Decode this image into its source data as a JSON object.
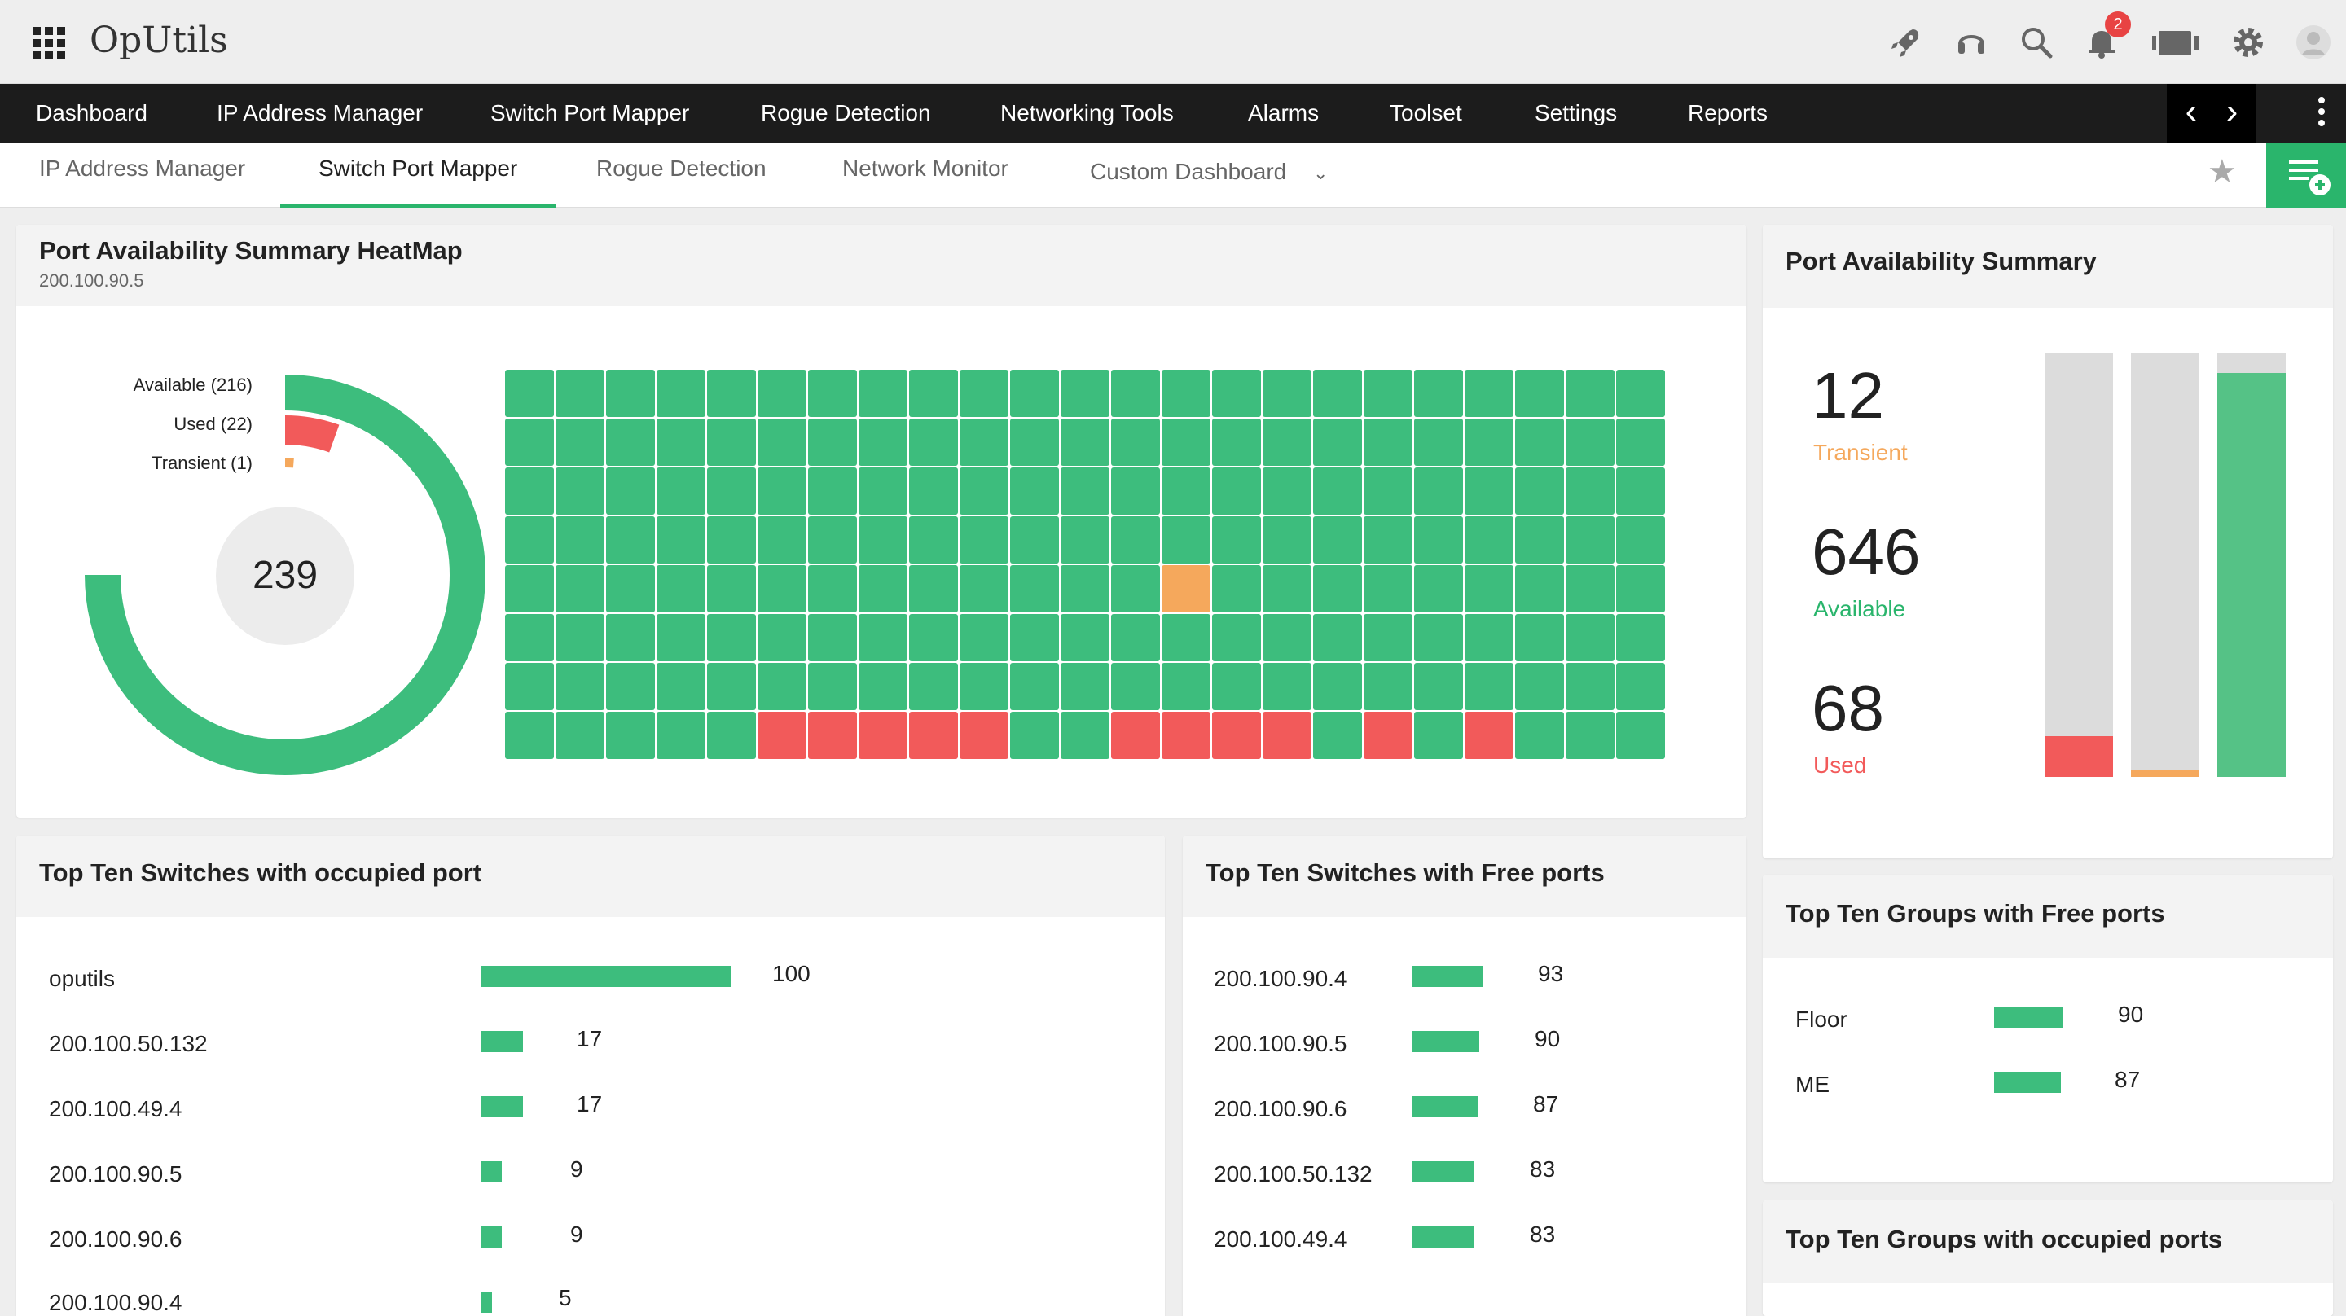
{
  "app": {
    "title": "OpUtils",
    "notification_count": "2"
  },
  "mainnav": {
    "items": [
      "Dashboard",
      "IP Address Manager",
      "Switch Port Mapper",
      "Rogue Detection",
      "Networking Tools",
      "Alarms",
      "Toolset",
      "Settings",
      "Reports"
    ]
  },
  "subnav": {
    "tabs": [
      "IP Address Manager",
      "Switch Port Mapper",
      "Rogue Detection",
      "Network Monitor",
      "Custom Dashboard"
    ],
    "active": "Switch Port Mapper"
  },
  "heatmap_panel": {
    "title": "Port Availability Summary HeatMap",
    "subtitle": "200.100.90.5",
    "donut": {
      "total": "239",
      "legend": [
        "Available (216)",
        "Used (22)",
        "Transient (1)"
      ],
      "available": 216,
      "used": 22,
      "transient": 1
    },
    "grid": {
      "rows": 8,
      "cols": 23,
      "orange_cells": [
        [
          4,
          13
        ]
      ],
      "red_cells": [
        [
          7,
          5
        ],
        [
          7,
          6
        ],
        [
          7,
          7
        ],
        [
          7,
          8
        ],
        [
          7,
          9
        ],
        [
          7,
          12
        ],
        [
          7,
          13
        ],
        [
          7,
          14
        ],
        [
          7,
          15
        ],
        [
          7,
          17
        ],
        [
          7,
          19
        ]
      ]
    }
  },
  "summary_panel": {
    "title": "Port Availability Summary",
    "stats": [
      {
        "value": "12",
        "label": "Transient"
      },
      {
        "value": "646",
        "label": "Available"
      },
      {
        "value": "68",
        "label": "Used"
      }
    ]
  },
  "occupied_panel": {
    "title": "Top Ten Switches with occupied port",
    "rows": [
      {
        "label": "oputils",
        "value": "100"
      },
      {
        "label": "200.100.50.132",
        "value": "17"
      },
      {
        "label": "200.100.49.4",
        "value": "17"
      },
      {
        "label": "200.100.90.5",
        "value": "9"
      },
      {
        "label": "200.100.90.6",
        "value": "9"
      },
      {
        "label": "200.100.90.4",
        "value": "5"
      }
    ]
  },
  "free_panel": {
    "title": "Top Ten Switches with Free ports",
    "rows": [
      {
        "label": "200.100.90.4",
        "value": "93"
      },
      {
        "label": "200.100.90.5",
        "value": "90"
      },
      {
        "label": "200.100.90.6",
        "value": "87"
      },
      {
        "label": "200.100.50.132",
        "value": "83"
      },
      {
        "label": "200.100.49.4",
        "value": "83"
      }
    ]
  },
  "groups_free_panel": {
    "title": "Top Ten Groups with Free ports",
    "rows": [
      {
        "label": "Floor",
        "value": "90"
      },
      {
        "label": "ME",
        "value": "87"
      }
    ]
  },
  "groups_occupied_panel": {
    "title": "Top Ten Groups with occupied ports"
  },
  "colors": {
    "green": "#3dbd7d",
    "red": "#f25a5a",
    "orange": "#f5a85c",
    "dark": "#1c1c1c",
    "accent": "#2ab56c"
  },
  "icons": [
    "apps-grid-icon",
    "rocket-icon",
    "headset-icon",
    "search-icon",
    "bell-icon",
    "license-icon",
    "gear-icon",
    "user-avatar-icon",
    "star-icon",
    "add-widget-icon"
  ]
}
